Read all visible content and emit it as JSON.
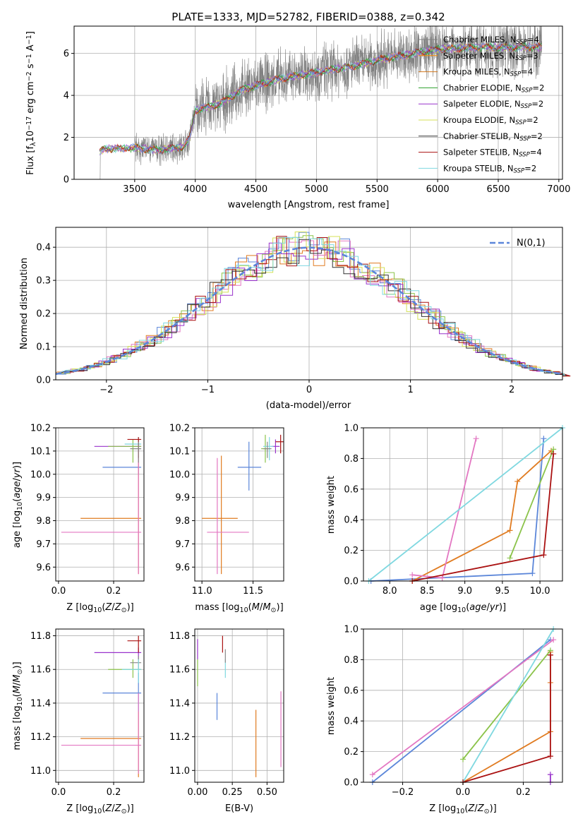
{
  "colors": {
    "Chabrier MILES": "#808080",
    "Salpeter MILES": "#ff8c00",
    "Kroupa MILES": "#d2781e",
    "Chabrier ELODIE": "#2ca02c",
    "Salpeter ELODIE": "#9932cc",
    "Kroupa ELODIE": "#d4e157",
    "Chabrier STELIB": "#333333",
    "Salpeter STELIB": "#aa1111",
    "Kroupa STELIB": "#7fd8e0",
    "blue": "#5b86d9",
    "orange": "#e07b20",
    "pink": "#e377c2",
    "green": "#8bc34a",
    "cyan": "#7fd8e0",
    "red": "#aa1111",
    "purple": "#9932cc",
    "gray": "#888888"
  },
  "chart_data": [
    {
      "type": "line",
      "title": "PLATE=1333, MJD=52782, FIBERID=0388, z=0.342",
      "xlabel": "wavelength [Angstrom, rest frame]",
      "ylabel": "Flux [f",
      "ylabel_unit": "10",
      "xlim": [
        3000,
        7030
      ],
      "ylim": [
        0,
        7.3
      ],
      "xticks": [
        3500,
        4000,
        4500,
        5000,
        5500,
        6000,
        6500,
        7000
      ],
      "yticks": [
        0,
        2,
        4,
        6
      ],
      "legend": [
        {
          "name": "Chabrier MILES, N",
          "n": "4"
        },
        {
          "name": "Salpeter MILES, N",
          "n": "3"
        },
        {
          "name": "Kroupa MILES, N",
          "n": "4"
        },
        {
          "name": "Chabrier ELODIE, N",
          "n": "2"
        },
        {
          "name": "Salpeter ELODIE, N",
          "n": "2"
        },
        {
          "name": "Kroupa ELODIE, N",
          "n": "2"
        },
        {
          "name": "Chabrier STELIB, N",
          "n": "2"
        },
        {
          "name": "Salpeter STELIB, N",
          "n": "4"
        },
        {
          "name": "Kroupa STELIB, N",
          "n": "2"
        }
      ],
      "spectrum_knots": [
        [
          3210,
          1.3
        ],
        [
          3250,
          1.45
        ],
        [
          3500,
          1.5
        ],
        [
          3700,
          1.4
        ],
        [
          3900,
          1.55
        ],
        [
          3950,
          1.9
        ],
        [
          4000,
          3.3
        ],
        [
          4200,
          3.6
        ],
        [
          4400,
          4.3
        ],
        [
          4700,
          4.8
        ],
        [
          5000,
          5.1
        ],
        [
          5300,
          5.4
        ],
        [
          5600,
          5.8
        ],
        [
          6000,
          6.2
        ],
        [
          6400,
          6.3
        ],
        [
          6800,
          6.3
        ]
      ]
    },
    {
      "type": "step",
      "xlabel": "(data-model)/error",
      "ylabel": "Normed distribution",
      "xlim": [
        -2.5,
        2.5
      ],
      "ylim": [
        0,
        0.46
      ],
      "xticks": [
        -2,
        -1,
        0,
        1,
        2
      ],
      "yticks": [
        0.0,
        0.1,
        0.2,
        0.3,
        0.4
      ],
      "legend": "N(0,1)"
    },
    {
      "type": "errorbar",
      "xlabel": "Z [log",
      "ylabel": "age  [log",
      "xlim": [
        -0.01,
        0.31
      ],
      "ylim": [
        9.54,
        10.2
      ],
      "xticks": [
        0.0,
        0.2
      ],
      "yticks": [
        9.6,
        9.7,
        9.8,
        9.9,
        10.0,
        10.1,
        10.2
      ],
      "points": [
        {
          "c": "blue",
          "x": 0.29,
          "xe": [
            0.16,
            0.3
          ],
          "y": 10.03,
          "ye": [
            10.0,
            10.06
          ]
        },
        {
          "c": "orange",
          "x": 0.29,
          "xe": [
            0.08,
            0.3
          ],
          "y": 9.81,
          "ye": [
            9.57,
            10.08
          ]
        },
        {
          "c": "pink",
          "x": 0.29,
          "xe": [
            0.01,
            0.3
          ],
          "y": 9.75,
          "ye": [
            9.57,
            10.12
          ]
        },
        {
          "c": "purple",
          "x": 0.29,
          "xe": [
            0.13,
            0.3
          ],
          "y": 10.12,
          "ye": [
            10.1,
            10.14
          ]
        },
        {
          "c": "green",
          "x": 0.27,
          "xe": [
            0.18,
            0.3
          ],
          "y": 10.12,
          "ye": [
            10.05,
            10.15
          ]
        },
        {
          "c": "cyan",
          "x": 0.29,
          "xe": [
            0.24,
            0.3
          ],
          "y": 10.13,
          "ye": [
            10.1,
            10.16
          ]
        },
        {
          "c": "red",
          "x": 0.29,
          "xe": [
            0.25,
            0.3
          ],
          "y": 10.15,
          "ye": [
            10.07,
            10.16
          ]
        },
        {
          "c": "gray",
          "x": 0.29,
          "xe": [
            0.26,
            0.3
          ],
          "y": 10.11,
          "ye": [
            10.05,
            10.14
          ]
        }
      ]
    },
    {
      "type": "errorbar",
      "xlabel": "mass [log",
      "xlim": [
        10.93,
        11.8
      ],
      "ylim": [
        9.54,
        10.2
      ],
      "xticks": [
        11.0,
        11.5
      ],
      "yticks": [
        9.6,
        9.7,
        9.8,
        9.9,
        10.0,
        10.1,
        10.2
      ],
      "points": [
        {
          "c": "blue",
          "x": 11.46,
          "xe": [
            11.35,
            11.58
          ],
          "y": 10.03,
          "ye": [
            9.93,
            10.14
          ]
        },
        {
          "c": "orange",
          "x": 11.19,
          "xe": [
            11.0,
            11.35
          ],
          "y": 9.81,
          "ye": [
            9.57,
            10.08
          ]
        },
        {
          "c": "pink",
          "x": 11.15,
          "xe": [
            11.05,
            11.46
          ],
          "y": 9.75,
          "ye": [
            9.57,
            10.07
          ]
        },
        {
          "c": "green",
          "x": 11.62,
          "xe": [
            11.58,
            11.67
          ],
          "y": 10.11,
          "ye": [
            10.05,
            10.17
          ]
        },
        {
          "c": "purple",
          "x": 11.72,
          "xe": [
            11.68,
            11.76
          ],
          "y": 10.12,
          "ye": [
            10.09,
            10.15
          ]
        },
        {
          "c": "cyan",
          "x": 11.66,
          "xe": [
            11.6,
            11.7
          ],
          "y": 10.12,
          "ye": [
            10.06,
            10.16
          ]
        },
        {
          "c": "red",
          "x": 11.77,
          "xe": [
            11.72,
            11.8
          ],
          "y": 10.14,
          "ye": [
            10.09,
            10.17
          ]
        },
        {
          "c": "gray",
          "x": 11.64,
          "xe": [
            11.6,
            11.68
          ],
          "y": 10.11,
          "ye": [
            10.07,
            10.14
          ]
        }
      ]
    },
    {
      "type": "line",
      "xlabel": "age  [log",
      "ylabel": "mass weight",
      "xlim": [
        7.65,
        10.3
      ],
      "ylim": [
        0,
        1.0
      ],
      "xticks": [
        8.0,
        8.5,
        9.0,
        9.5,
        10.0
      ],
      "yticks": [
        0.0,
        0.2,
        0.4,
        0.6,
        0.8,
        1.0
      ],
      "series": [
        {
          "c": "blue",
          "x": [
            7.75,
            9.9,
            10.05
          ],
          "y": [
            0.0,
            0.05,
            0.93
          ]
        },
        {
          "c": "orange",
          "x": [
            8.3,
            9.6,
            9.7,
            10.15
          ],
          "y": [
            0.0,
            0.33,
            0.65,
            0.85
          ]
        },
        {
          "c": "pink",
          "x": [
            8.3,
            8.7,
            9.15
          ],
          "y": [
            0.04,
            0.02,
            0.93
          ]
        },
        {
          "c": "green",
          "x": [
            9.6,
            10.18
          ],
          "y": [
            0.15,
            0.86
          ]
        },
        {
          "c": "cyan",
          "x": [
            7.72,
            10.3
          ],
          "y": [
            0.0,
            1.0
          ]
        },
        {
          "c": "red",
          "x": [
            8.3,
            10.05,
            10.18
          ],
          "y": [
            0.0,
            0.17,
            0.83
          ]
        }
      ]
    },
    {
      "type": "errorbar",
      "xlabel": "Z [log",
      "ylabel": "mass [log",
      "xlim": [
        -0.01,
        0.31
      ],
      "ylim": [
        10.93,
        11.84
      ],
      "xticks": [
        0.0,
        0.2
      ],
      "yticks": [
        11.0,
        11.2,
        11.4,
        11.6,
        11.8
      ],
      "points": [
        {
          "c": "blue",
          "x": 0.29,
          "xe": [
            0.16,
            0.3
          ],
          "y": 11.46,
          "ye": [
            11.35,
            11.58
          ]
        },
        {
          "c": "orange",
          "x": 0.29,
          "xe": [
            0.08,
            0.3
          ],
          "y": 11.19,
          "ye": [
            10.96,
            11.35
          ]
        },
        {
          "c": "pink",
          "x": 0.29,
          "xe": [
            0.01,
            0.3
          ],
          "y": 11.15,
          "ye": [
            10.98,
            11.46
          ]
        },
        {
          "c": "purple",
          "x": 0.29,
          "xe": [
            0.13,
            0.3
          ],
          "y": 11.7,
          "ye": [
            11.66,
            11.73
          ]
        },
        {
          "c": "green",
          "x": 0.27,
          "xe": [
            0.18,
            0.3
          ],
          "y": 11.6,
          "ye": [
            11.55,
            11.66
          ]
        },
        {
          "c": "red",
          "x": 0.29,
          "xe": [
            0.25,
            0.3
          ],
          "y": 11.77,
          "ye": [
            11.7,
            11.8
          ]
        },
        {
          "c": "gray",
          "x": 0.29,
          "xe": [
            0.26,
            0.3
          ],
          "y": 11.64,
          "ye": [
            11.6,
            11.68
          ]
        },
        {
          "c": "cyan",
          "x": 0.29,
          "xe": [
            0.23,
            0.3
          ],
          "y": 11.6,
          "ye": [
            11.52,
            11.66
          ]
        }
      ]
    },
    {
      "type": "errorbar",
      "xlabel": "E(B-V)",
      "xlim": [
        -0.02,
        0.62
      ],
      "ylim": [
        10.93,
        11.84
      ],
      "xticks": [
        0.0,
        0.25,
        0.5
      ],
      "yticks": [
        11.0,
        11.2,
        11.4,
        11.6,
        11.8
      ],
      "points": [
        {
          "c": "purple",
          "x": 0.0,
          "y": 11.7,
          "ye": [
            11.66,
            11.78
          ]
        },
        {
          "c": "green",
          "x": 0.0,
          "y": 11.58,
          "ye": [
            11.5,
            11.66
          ]
        },
        {
          "c": "red",
          "x": 0.18,
          "y": 11.76,
          "ye": [
            11.7,
            11.8
          ]
        },
        {
          "c": "cyan",
          "x": 0.2,
          "y": 11.6,
          "ye": [
            11.55,
            11.66
          ]
        },
        {
          "c": "gray",
          "x": 0.2,
          "y": 11.68,
          "ye": [
            11.64,
            11.72
          ]
        },
        {
          "c": "blue",
          "x": 0.14,
          "y": 11.38,
          "ye": [
            11.3,
            11.46
          ]
        },
        {
          "c": "orange",
          "x": 0.42,
          "y": 11.15,
          "ye": [
            10.96,
            11.36
          ]
        },
        {
          "c": "pink",
          "x": 0.6,
          "y": 11.25,
          "ye": [
            11.02,
            11.47
          ]
        }
      ]
    },
    {
      "type": "line",
      "xlabel": "Z [log",
      "ylabel": "mass weight",
      "xlim": [
        -0.33,
        0.33
      ],
      "ylim": [
        0,
        1.0
      ],
      "xticks": [
        -0.2,
        0.0,
        0.2
      ],
      "yticks": [
        0.0,
        0.2,
        0.4,
        0.6,
        0.8,
        1.0
      ],
      "series": [
        {
          "c": "blue",
          "x": [
            -0.3,
            0.29
          ],
          "y": [
            0.0,
            0.93
          ]
        },
        {
          "c": "pink",
          "x": [
            -0.3,
            0.3
          ],
          "y": [
            0.05,
            0.93
          ]
        },
        {
          "c": "orange",
          "x": [
            0.0,
            0.29,
            0.29,
            0.29
          ],
          "y": [
            0.0,
            0.33,
            0.65,
            0.85
          ]
        },
        {
          "c": "green",
          "x": [
            0.0,
            0.29
          ],
          "y": [
            0.15,
            0.86
          ]
        },
        {
          "c": "cyan",
          "x": [
            0.0,
            0.3
          ],
          "y": [
            0.0,
            1.0
          ]
        },
        {
          "c": "red",
          "x": [
            0.0,
            0.29,
            0.29,
            0.29
          ],
          "y": [
            0.0,
            0.17,
            0.83,
            0.83
          ]
        },
        {
          "c": "purple",
          "x": [
            0.29,
            0.29
          ],
          "y": [
            0.0,
            0.05
          ]
        }
      ]
    }
  ]
}
